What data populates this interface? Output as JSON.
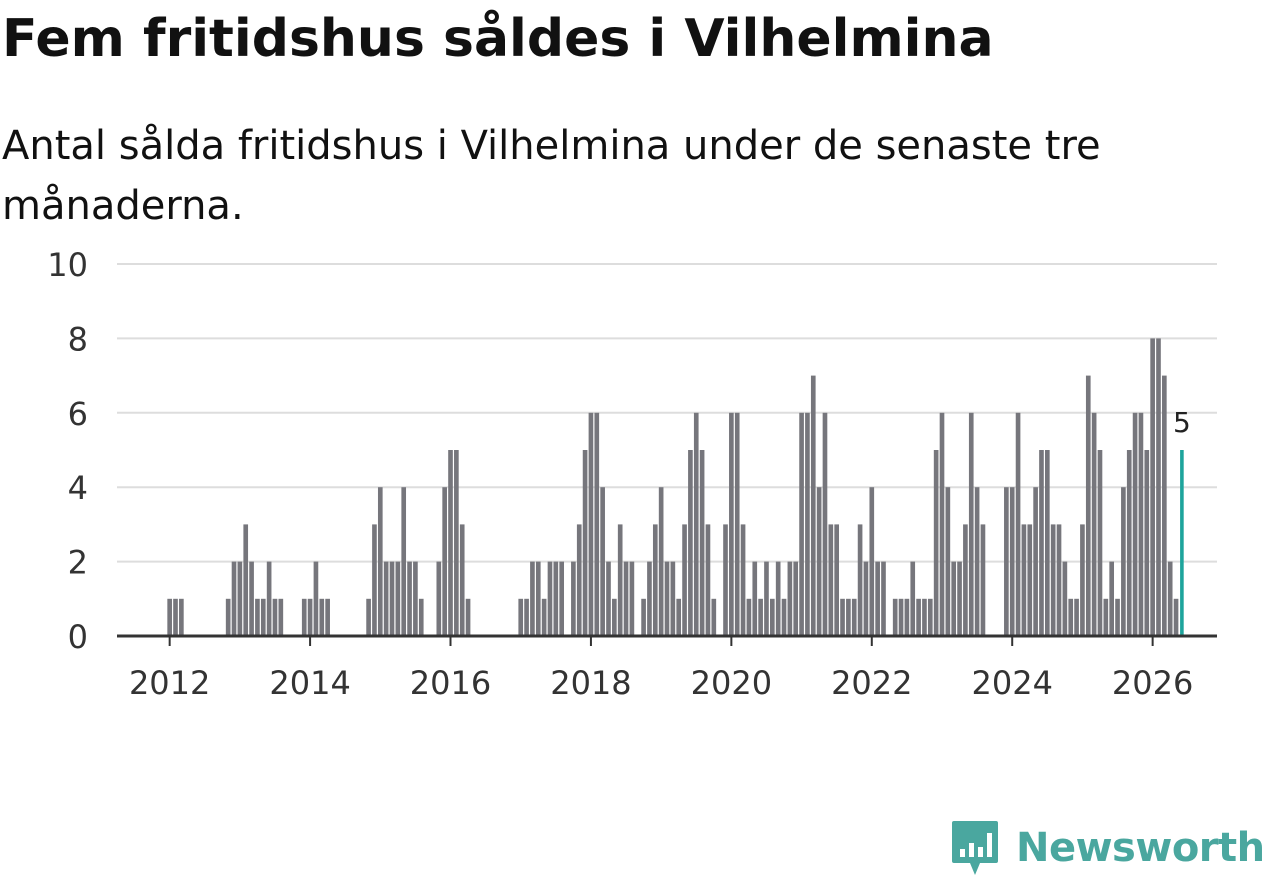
{
  "title": "Fem fritidshus såldes i Vilhelmina",
  "subtitle": "Antal sålda fritidshus i Vilhelmina under de senaste tre månaderna.",
  "brand": {
    "name": "Newsworthy",
    "icon": "newsworthy-logo-icon",
    "color": "#4aa79f"
  },
  "colors": {
    "bar": "#76767c",
    "highlight": "#1ea49c",
    "grid": "#dddddd",
    "axis": "#333333"
  },
  "chart_data": {
    "type": "bar",
    "title": "Fem fritidshus såldes i Vilhelmina",
    "ylabel": "",
    "xlabel": "",
    "ylim": [
      0,
      10
    ],
    "yticks": [
      "0",
      "2",
      "4",
      "6",
      "8",
      "10"
    ],
    "xticks": [
      "2012",
      "2014",
      "2016",
      "2018",
      "2020",
      "2022",
      "2024",
      "2026"
    ],
    "xrange_months": [
      "2011-04",
      "2026-12"
    ],
    "start_month": "2011-05",
    "frequency": "monthly",
    "values": [
      0,
      0,
      0,
      0,
      0,
      0,
      0,
      0,
      1,
      1,
      1,
      0,
      0,
      0,
      0,
      0,
      0,
      0,
      1,
      2,
      2,
      3,
      2,
      1,
      1,
      2,
      1,
      1,
      0,
      0,
      0,
      1,
      1,
      2,
      1,
      1,
      0,
      0,
      0,
      0,
      0,
      0,
      1,
      3,
      4,
      2,
      2,
      2,
      4,
      2,
      2,
      1,
      0,
      0,
      2,
      4,
      5,
      5,
      3,
      1,
      0,
      0,
      0,
      0,
      0,
      0,
      0,
      0,
      1,
      1,
      2,
      2,
      1,
      2,
      2,
      2,
      0,
      2,
      3,
      5,
      6,
      6,
      4,
      2,
      1,
      3,
      2,
      2,
      0,
      1,
      2,
      3,
      4,
      2,
      2,
      1,
      3,
      5,
      6,
      5,
      3,
      1,
      0,
      3,
      6,
      6,
      3,
      1,
      2,
      1,
      2,
      1,
      2,
      1,
      2,
      2,
      6,
      6,
      7,
      4,
      6,
      3,
      3,
      1,
      1,
      1,
      3,
      2,
      4,
      2,
      2,
      0,
      1,
      1,
      1,
      2,
      1,
      1,
      1,
      5,
      6,
      4,
      2,
      2,
      3,
      6,
      4,
      3,
      0,
      0,
      0,
      4,
      4,
      6,
      3,
      3,
      4,
      5,
      5,
      3,
      3,
      2,
      1,
      1,
      3,
      7,
      6,
      5,
      1,
      2,
      1,
      4,
      5,
      6,
      6,
      5,
      8,
      8,
      7,
      2,
      1,
      5
    ],
    "last_value_label": "5",
    "highlight": "last"
  }
}
